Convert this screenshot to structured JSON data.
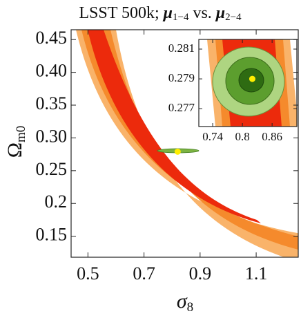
{
  "chart_data": [
    {
      "type": "contour",
      "title": [
        "LSST 500k; ",
        "μ",
        "1−4",
        " vs. ",
        "μ",
        "2−4"
      ],
      "xlabel": [
        "σ",
        "8"
      ],
      "ylabel": [
        "Ω",
        "m0"
      ],
      "xlim": [
        0.44,
        1.25
      ],
      "ylim": [
        0.118,
        0.465
      ],
      "xticks": [
        0.5,
        0.7,
        0.9,
        1.1
      ],
      "yticks": [
        0.15,
        0.2,
        {
          "value": 0.25,
          "label": "0.25"
        },
        {
          "value": 0.3,
          "label": "0.30"
        },
        0.35,
        {
          "value": 0.4,
          "label": "0.40"
        },
        0.45
      ],
      "point": {
        "x": 0.82,
        "y": 0.279,
        "color": "#ffee00"
      }
    },
    {
      "type": "contour",
      "xlim": [
        0.712,
        0.91
      ],
      "ylim": [
        0.2758,
        0.28165
      ],
      "xticks": [
        0.74,
        {
          "value": 0.8,
          "label": "0.8"
        },
        0.86
      ],
      "yticks": [
        0.277,
        0.279,
        0.281
      ],
      "point": {
        "x": 0.82,
        "y": 0.279,
        "color": "#ffee00"
      }
    }
  ]
}
